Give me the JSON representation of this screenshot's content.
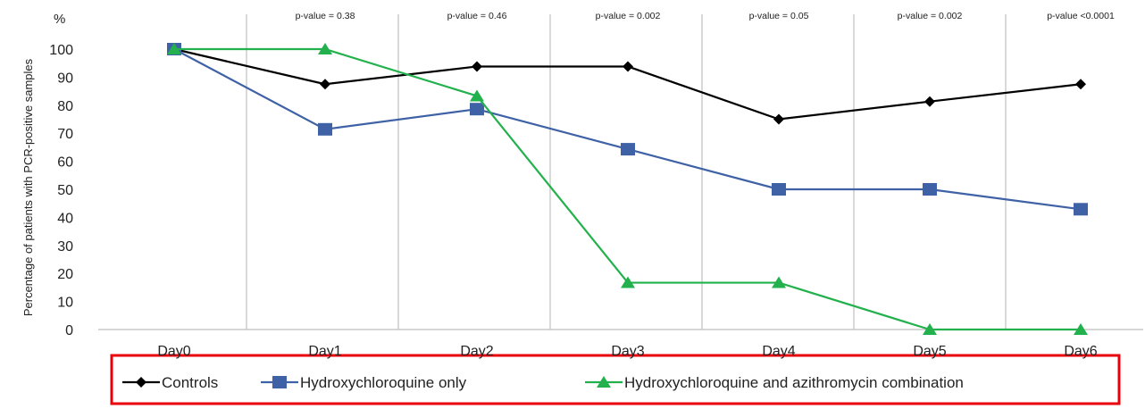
{
  "chart_data": {
    "type": "line",
    "title": "",
    "ylabel": "Percentage of patients with PCR-positive samples",
    "y_unit": "%",
    "ylim": [
      0,
      100
    ],
    "yticks": [
      0,
      10,
      20,
      30,
      40,
      50,
      60,
      70,
      80,
      90,
      100
    ],
    "categories": [
      "Day0",
      "Day1",
      "Day2",
      "Day3",
      "Day4",
      "Day5",
      "Day6"
    ],
    "p_values": [
      "p-value = 0.38",
      "p-value = 0.46",
      "p-value = 0.002",
      "p-value = 0.05",
      "p-value = 0.002",
      "p-value <0.0001"
    ],
    "grid": false,
    "legend_position": "bottom",
    "series": [
      {
        "name": "Controls",
        "marker": "diamond",
        "color": "#000000",
        "values": [
          100,
          87.5,
          93.8,
          93.8,
          75,
          81.3,
          87.5
        ]
      },
      {
        "name": "Hydroxychloroquine only",
        "marker": "square",
        "color": "#3F62A6",
        "values": [
          100,
          71.4,
          78.6,
          64.3,
          50,
          50,
          42.9
        ]
      },
      {
        "name": "Hydroxychloroquine and azithromycin combination",
        "marker": "triangle",
        "color": "#22B14C",
        "values": [
          100,
          100,
          83.3,
          16.7,
          16.7,
          0,
          0
        ]
      }
    ],
    "highlight_box_color": "#E8000B"
  }
}
